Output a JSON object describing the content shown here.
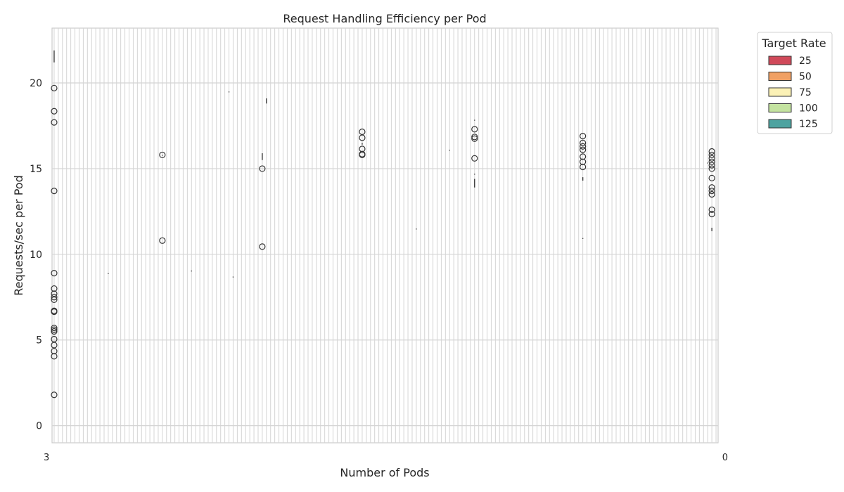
{
  "chart_data": {
    "type": "box",
    "title": "Request Handling Efficiency per Pod",
    "xlabel": "Number of Pods",
    "ylabel": "Requests/sec per Pod",
    "ylim": [
      -1,
      23.2
    ],
    "yticks": [
      0,
      5,
      10,
      15,
      20
    ],
    "grid": true,
    "legend": {
      "title": "Target Rate",
      "placement": "outside-right-top",
      "entries": [
        {
          "label": "25",
          "color": "#d0495a"
        },
        {
          "label": "50",
          "color": "#f0a064"
        },
        {
          "label": "75",
          "color": "#fbf1b6"
        },
        {
          "label": "100",
          "color": "#c4e3a0"
        },
        {
          "label": "125",
          "color": "#4ea3a0"
        }
      ]
    },
    "x_category_count": 160,
    "x_tick_labels_note": "overlapping tick labels; leftmost reads 3, rightmost reads 0",
    "x_tick_first": "3",
    "x_tick_last": "0",
    "groups": [
      {
        "x_index": 0,
        "whisker_min": 21.2,
        "whisker_max": 21.9,
        "outliers": [
          19.7,
          18.35,
          17.7,
          13.7,
          8.9,
          8.0,
          7.7,
          7.5,
          7.35,
          6.7,
          6.65,
          5.7,
          5.6,
          5.5,
          5.05,
          4.7,
          4.35,
          4.05,
          1.8
        ]
      },
      {
        "x_index": 13,
        "whisker_min": 8.85,
        "whisker_max": 8.9,
        "outliers": []
      },
      {
        "x_index": 26,
        "whisker_min": 15.75,
        "whisker_max": 15.8,
        "outliers": [
          15.8,
          10.8
        ]
      },
      {
        "x_index": 33,
        "whisker_min": 9.0,
        "whisker_max": 9.05,
        "outliers": []
      },
      {
        "x_index": 42,
        "whisker_min": 19.45,
        "whisker_max": 19.5,
        "outliers": []
      },
      {
        "x_index": 43,
        "whisker_min": 8.65,
        "whisker_max": 8.7,
        "outliers": []
      },
      {
        "x_index": 50,
        "whisker_min": 15.5,
        "whisker_max": 15.9,
        "outliers": [
          15.0,
          10.45
        ]
      },
      {
        "x_index": 51,
        "whisker_min": 18.8,
        "whisker_max": 19.1,
        "outliers": []
      },
      {
        "x_index": 74,
        "whisker_min": 16.4,
        "whisker_max": 16.5,
        "outliers": [
          17.15,
          16.8,
          16.15,
          15.85,
          15.8
        ]
      },
      {
        "x_index": 87,
        "whisker_min": 11.45,
        "whisker_max": 11.5,
        "outliers": []
      },
      {
        "x_index": 95,
        "whisker_min": 16.05,
        "whisker_max": 16.1,
        "outliers": []
      },
      {
        "x_index": 101,
        "whisker_min": 13.9,
        "whisker_max": 14.4,
        "outliers": [
          17.3,
          16.85,
          16.75,
          15.6
        ]
      },
      {
        "x_index": 101,
        "whisker_min": 17.8,
        "whisker_max": 17.85,
        "outliers": []
      },
      {
        "x_index": 101,
        "whisker_min": 14.65,
        "whisker_max": 14.7,
        "outliers": []
      },
      {
        "x_index": 127,
        "whisker_min": 14.3,
        "whisker_max": 14.5,
        "outliers": [
          16.9,
          16.5,
          16.3,
          16.1,
          15.7,
          15.4,
          15.1
        ]
      },
      {
        "x_index": 127,
        "whisker_min": 10.9,
        "whisker_max": 10.95,
        "outliers": []
      },
      {
        "x_index": 158,
        "whisker_min": 11.35,
        "whisker_max": 11.55,
        "outliers": [
          16.0,
          15.8,
          15.6,
          15.4,
          15.2,
          15.0,
          14.45,
          13.9,
          13.7,
          13.5,
          12.6,
          12.35
        ]
      },
      {
        "x_index": 157,
        "whisker_min": 15.3,
        "whisker_max": 15.35,
        "outliers": []
      }
    ]
  }
}
